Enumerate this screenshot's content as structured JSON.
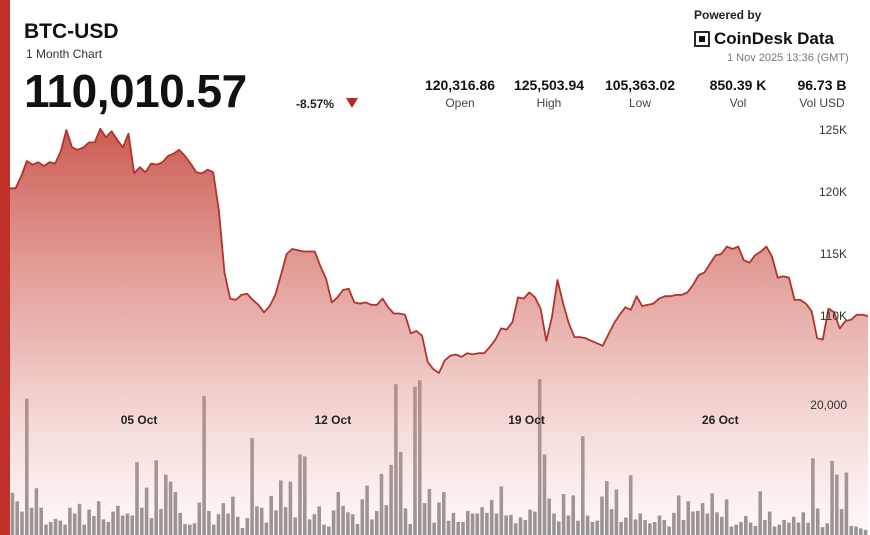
{
  "header": {
    "title": "BTC-USD",
    "subtitle": "1 Month Chart",
    "price": "110,010.57",
    "change": "-8.57%",
    "powered_by": "Powered by",
    "brand": "CoinDesk Data",
    "timestamp": "1 Nov 2025 13:36 (GMT)"
  },
  "stats": [
    {
      "value": "120,316.86",
      "label": "Open"
    },
    {
      "value": "125,503.94",
      "label": "High"
    },
    {
      "value": "105,363.02",
      "label": "Low"
    },
    {
      "value": "850.39 K",
      "label": "Vol"
    },
    {
      "value": "96.73 B",
      "label": "Vol USD"
    }
  ],
  "colors": {
    "accent": "#c0302b",
    "line": "#b3322b",
    "bars": "#575757",
    "down_arrow": "#b82a24"
  },
  "chart_data": {
    "type": "area",
    "title": "BTC-USD",
    "price_series": {
      "x_range": [
        "01 Oct",
        "01 Nov"
      ],
      "y_ticks": [
        "125K",
        "120K",
        "115K",
        "110K"
      ],
      "y_tick_values": [
        125000,
        120000,
        115000,
        110000
      ],
      "ylim": [
        104000,
        126000
      ],
      "values": [
        120300,
        120300,
        121300,
        122500,
        122200,
        122400,
        122100,
        122400,
        122300,
        123300,
        125000,
        123600,
        123400,
        123600,
        124000,
        124000,
        125100,
        124400,
        124900,
        124200,
        123600,
        124700,
        121500,
        122000,
        121600,
        122300,
        122200,
        122400,
        122900,
        123100,
        123400,
        122900,
        122300,
        121600,
        121500,
        121800,
        121600,
        118500,
        113500,
        111400,
        111300,
        111700,
        111800,
        111300,
        110900,
        110300,
        110800,
        111700,
        113300,
        115000,
        115400,
        115300,
        115200,
        115200,
        115200,
        114000,
        113000,
        111100,
        111500,
        112100,
        112200,
        111100,
        111000,
        111100,
        110900,
        110900,
        111400,
        110700,
        110200,
        110200,
        110100,
        108600,
        108800,
        108400,
        106300,
        105700,
        105400,
        106400,
        106800,
        106900,
        106700,
        107000,
        106900,
        107000,
        107000,
        107500,
        108100,
        109000,
        108900,
        109500,
        111500,
        111400,
        111900,
        111500,
        110600,
        108000,
        109900,
        112900,
        111000,
        109400,
        108300,
        108300,
        108200,
        108000,
        107800,
        107600,
        108500,
        109400,
        110100,
        110700,
        110500,
        111600,
        110800,
        110900,
        111000,
        111400,
        111600,
        111600,
        111700,
        111700,
        111900,
        112500,
        113300,
        113500,
        114200,
        114900,
        115000,
        115600,
        115400,
        115600,
        114500,
        114300,
        114900,
        115200,
        115600,
        114800,
        113100,
        113200,
        113100,
        111300,
        111300,
        111000,
        110400,
        108200,
        108100,
        110600,
        110300,
        109000,
        109600,
        109700,
        110100,
        110100,
        110000
      ]
    },
    "volume_series": {
      "y_ticks": [
        "20,000"
      ],
      "y_tick_values": [
        20000
      ],
      "ylim": [
        0,
        28000
      ],
      "values": [
        6500,
        5200,
        3600,
        21000,
        4200,
        7200,
        4200,
        1600,
        2000,
        2500,
        2200,
        1600,
        4200,
        3300,
        4800,
        1600,
        3900,
        2900,
        5200,
        2400,
        2000,
        3600,
        4500,
        3000,
        3300,
        3000,
        11200,
        4200,
        7300,
        2600,
        11500,
        4000,
        9300,
        8200,
        6600,
        3400,
        1700,
        1600,
        1800,
        5000,
        21400,
        3700,
        1600,
        3200,
        4900,
        3300,
        5900,
        2800,
        1100,
        2600,
        14900,
        4400,
        4200,
        1900,
        6000,
        3800,
        8400,
        4300,
        8200,
        2700,
        12400,
        12100,
        2400,
        3200,
        4400,
        1600,
        1300,
        3800,
        6600,
        4500,
        3500,
        3200,
        1700,
        5500,
        7600,
        2400,
        3700,
        9400,
        4600,
        10800,
        23200,
        12800,
        4100,
        1700,
        22800,
        23800,
        4900,
        7100,
        1900,
        5000,
        6600,
        2200,
        3400,
        2000,
        2000,
        3700,
        3300,
        3300,
        4300,
        3400,
        5400,
        3300,
        7500,
        3000,
        3100,
        1800,
        2700,
        2300,
        3900,
        3600,
        24000,
        12400,
        5600,
        3300,
        2100,
        6300,
        3000,
        6100,
        2200,
        15200,
        3000,
        2000,
        2200,
        5900,
        8300,
        4000,
        7000,
        2000,
        2700,
        9200,
        2400,
        3300,
        2300,
        1800,
        2000,
        3000,
        2300,
        1300,
        3400,
        6100,
        2300,
        5200,
        3600,
        3700,
        4900,
        3300,
        6400,
        3500,
        2800,
        5500,
        1300,
        1600,
        2000,
        2900,
        1900,
        1400,
        6700,
        2300,
        3600,
        1300,
        1600,
        2300,
        1900,
        2800,
        1900,
        3500,
        1900,
        11800,
        4100,
        1200,
        1800,
        11400,
        9300,
        4000,
        9600,
        1400,
        1300,
        1000,
        800
      ]
    },
    "x_ticks": [
      "05 Oct",
      "12 Oct",
      "19 Oct",
      "26 Oct"
    ],
    "grid": false
  }
}
